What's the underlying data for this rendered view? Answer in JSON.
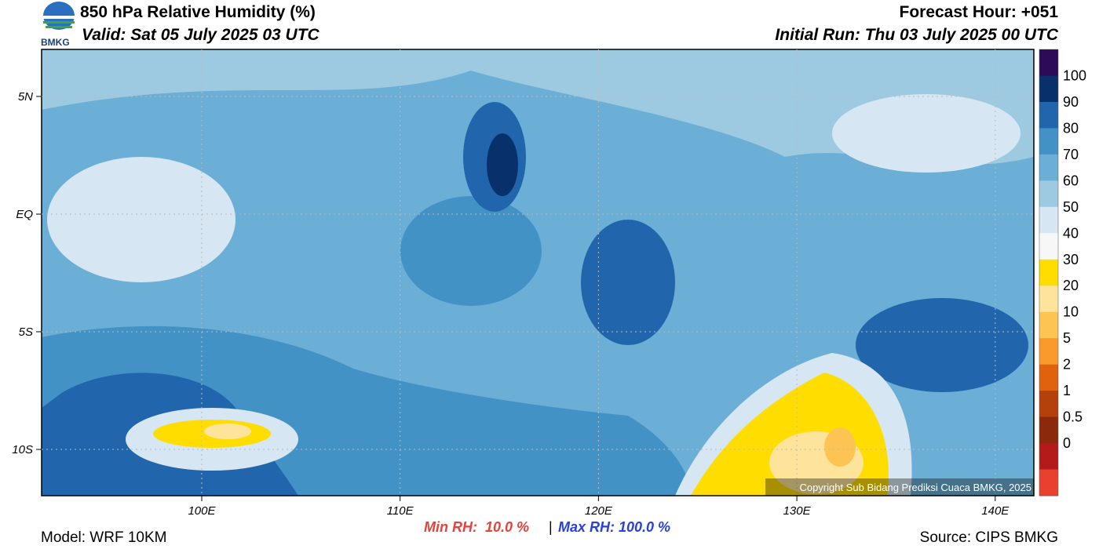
{
  "header": {
    "title": "850 hPa Relative Humidity (%)",
    "valid": "Valid: Sat 05 July 2025 03 UTC",
    "forecast_hour": "Forecast Hour: +051",
    "initial_run": "Initial Run: Thu 03 July 2025 00 UTC",
    "logo_text": "BMKG"
  },
  "map": {
    "lat_labels": [
      "5N",
      "EQ",
      "5S",
      "10S"
    ],
    "lon_labels": [
      "100E",
      "110E",
      "120E",
      "130E",
      "140E"
    ],
    "copyright": "Copyright Sub Bidang Prediksi Cuaca BMKG, 2025"
  },
  "colorbar": {
    "labels": [
      "100",
      "90",
      "80",
      "70",
      "60",
      "50",
      "40",
      "30",
      "20",
      "10",
      "5",
      "2",
      "1",
      "0.5",
      "0"
    ],
    "colors": [
      "#2d0b59",
      "#08306b",
      "#2166ac",
      "#4292c6",
      "#6baed6",
      "#9ecae1",
      "#d6e6f2",
      "#f7f7f7",
      "#ffdd00",
      "#fde49a",
      "#fdc454",
      "#fb9a2c",
      "#e0620f",
      "#b4400b",
      "#8a2a0a",
      "#b31b1b",
      "#e8412f"
    ]
  },
  "footer": {
    "model": "Model: WRF 10KM",
    "min_rh": "Min RH:  10.0 %",
    "separator": "|",
    "max_rh": "Max RH: 100.0 %",
    "source": "Source: CIPS BMKG"
  }
}
